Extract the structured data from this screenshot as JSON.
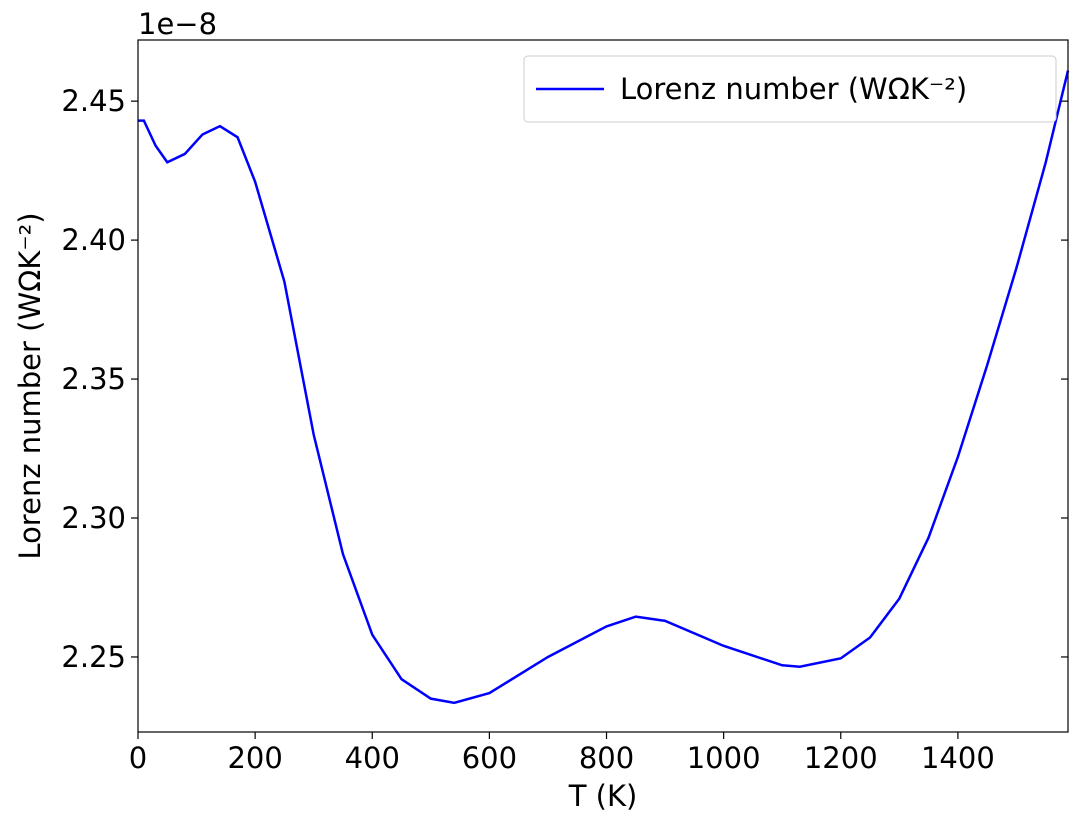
{
  "chart_data": {
    "type": "line",
    "xlabel": "T (K)",
    "ylabel": "Lorenz number (WΩK⁻²)",
    "offset_text": "1e−8",
    "x": [
      0,
      10,
      30,
      50,
      80,
      110,
      140,
      170,
      200,
      250,
      300,
      350,
      400,
      450,
      500,
      540,
      600,
      700,
      800,
      850,
      900,
      1000,
      1100,
      1130,
      1200,
      1250,
      1300,
      1350,
      1400,
      1450,
      1500,
      1550,
      1588
    ],
    "series": [
      {
        "name": "Lorenz number (WΩK⁻²)",
        "color": "#0000ff",
        "values": [
          2.443,
          2.443,
          2.434,
          2.428,
          2.431,
          2.438,
          2.441,
          2.437,
          2.421,
          2.385,
          2.33,
          2.287,
          2.258,
          2.242,
          2.235,
          2.2335,
          2.237,
          2.25,
          2.261,
          2.2645,
          2.263,
          2.254,
          2.247,
          2.2465,
          2.2495,
          2.257,
          2.271,
          2.293,
          2.322,
          2.355,
          2.39,
          2.428,
          2.461
        ]
      }
    ],
    "xlim": [
      0,
      1588
    ],
    "ylim": [
      2.223,
      2.472
    ],
    "xticks": [
      0,
      200,
      400,
      600,
      800,
      1000,
      1200,
      1400
    ],
    "yticks": [
      2.25,
      {
        "value": 2.3,
        "label": "2.30"
      },
      2.35,
      {
        "value": 2.4,
        "label": "2.40"
      },
      2.45
    ],
    "legend": "upper right",
    "grid": false
  }
}
